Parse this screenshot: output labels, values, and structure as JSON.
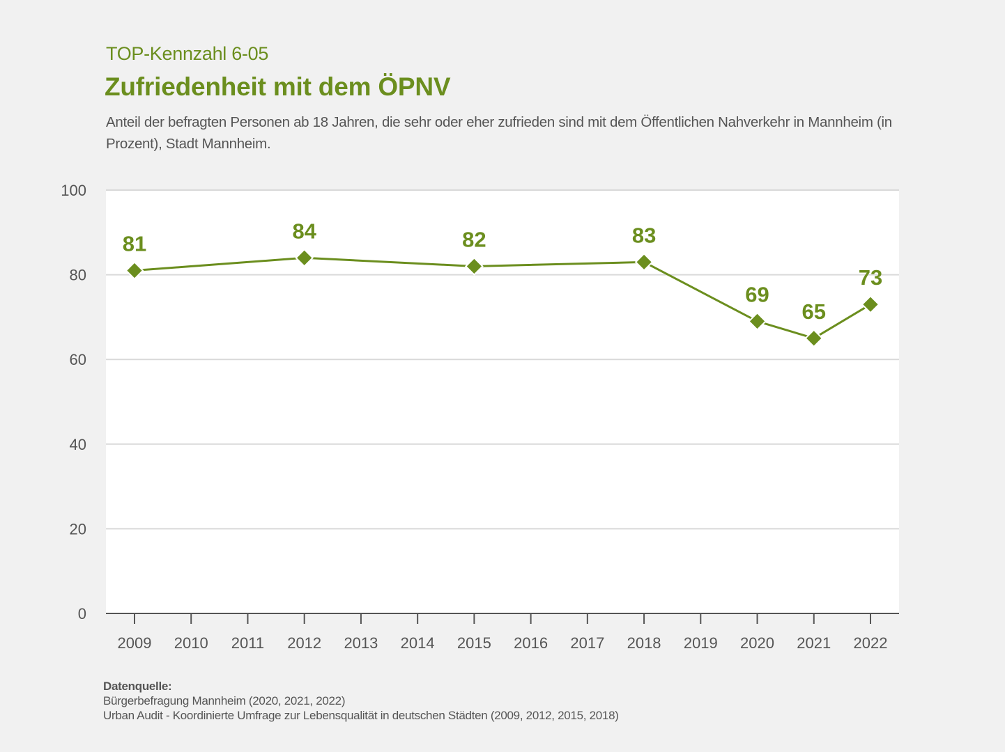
{
  "header": {
    "kicker": "TOP-Kennzahl 6-05",
    "title": "Zufriedenheit mit dem ÖPNV",
    "subtitle": "Anteil der befragten Personen ab 18 Jahren, die sehr oder eher zufrieden sind mit dem Öffentlichen Nahverkehr in Mannheim (in Prozent), Stadt Mannheim."
  },
  "colors": {
    "accent": "#6b8e1e",
    "text": "#555555",
    "grid": "#d9d9d9",
    "axis": "#555555",
    "plot_background": "#ffffff",
    "page_background": "#f1f1f1"
  },
  "chart_data": {
    "type": "line",
    "title": "Zufriedenheit mit dem ÖPNV",
    "xlabel": "",
    "ylabel": "",
    "categories": [
      "2009",
      "2010",
      "2011",
      "2012",
      "2013",
      "2014",
      "2015",
      "2016",
      "2017",
      "2018",
      "2019",
      "2020",
      "2021",
      "2022"
    ],
    "series": [
      {
        "name": "Zufriedenheit mit dem ÖPNV (%)",
        "points": [
          {
            "x": "2009",
            "y": 81,
            "label": "81"
          },
          {
            "x": "2012",
            "y": 84,
            "label": "84"
          },
          {
            "x": "2015",
            "y": 82,
            "label": "82"
          },
          {
            "x": "2018",
            "y": 83,
            "label": "83"
          },
          {
            "x": "2020",
            "y": 69,
            "label": "69"
          },
          {
            "x": "2021",
            "y": 65,
            "label": "65"
          },
          {
            "x": "2022",
            "y": 73,
            "label": "73"
          }
        ],
        "marker": "diamond"
      }
    ],
    "ylim": [
      0,
      100
    ],
    "yticks": [
      0,
      20,
      40,
      60,
      80,
      100
    ],
    "ytick_labels": [
      "0",
      "20",
      "40",
      "60",
      "80",
      "100"
    ],
    "grid": true,
    "legend": "none"
  },
  "source": {
    "label": "Datenquelle:",
    "lines": [
      "Bürgerbefragung Mannheim (2020, 2021, 2022)",
      "Urban Audit - Koordinierte Umfrage zur Lebensqualität in deutschen Städten (2009, 2012, 2015, 2018)"
    ]
  }
}
